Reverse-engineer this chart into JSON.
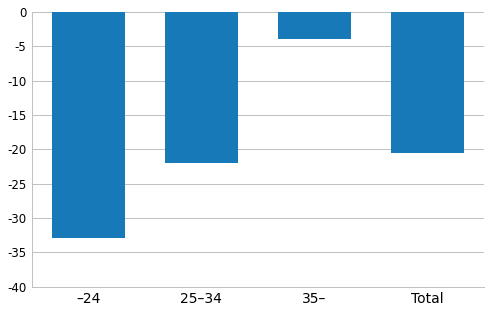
{
  "categories": [
    "–24",
    "25–34",
    "35–",
    "Total"
  ],
  "values": [
    -33.0,
    -22.0,
    -4.0,
    -20.5
  ],
  "bar_color": "#1779b8",
  "ylim": [
    -40,
    0
  ],
  "yticks": [
    0,
    -5,
    -10,
    -15,
    -20,
    -25,
    -30,
    -35,
    -40
  ],
  "bar_width": 0.65,
  "background_color": "#ffffff",
  "grid_color": "#c0c0c0",
  "tick_fontsize": 8.5
}
